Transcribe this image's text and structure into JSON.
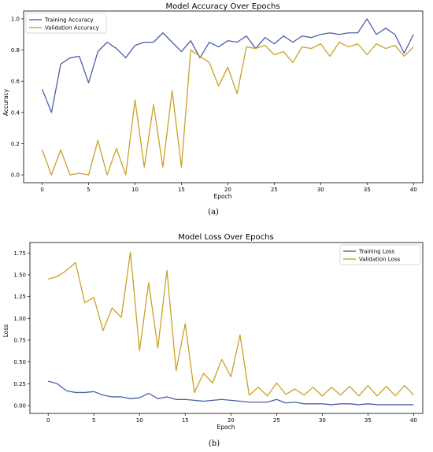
{
  "colors": {
    "training": "#4c5fa8",
    "validation": "#c9a227"
  },
  "chart_data": [
    {
      "type": "line",
      "title": "Model Accuracy Over Epochs",
      "xlabel": "Epoch",
      "ylabel": "Accuracy",
      "caption": "(a)",
      "xlim": [
        -2,
        41
      ],
      "ylim": [
        -0.05,
        1.05
      ],
      "xticks": [
        0,
        5,
        10,
        15,
        20,
        25,
        30,
        35,
        40
      ],
      "yticks": [
        0.0,
        0.2,
        0.4,
        0.6,
        0.8,
        1.0
      ],
      "ytick_labels": [
        "0.0",
        "0.2",
        "0.4",
        "0.6",
        "0.8",
        "1.0"
      ],
      "legend_position": "top-left",
      "x": [
        0,
        1,
        2,
        3,
        4,
        5,
        6,
        7,
        8,
        9,
        10,
        11,
        12,
        13,
        14,
        15,
        16,
        17,
        18,
        19,
        20,
        21,
        22,
        23,
        24,
        25,
        26,
        27,
        28,
        29,
        30,
        31,
        32,
        33,
        34,
        35,
        36,
        37,
        38,
        39,
        40
      ],
      "series": [
        {
          "name": "Training Accuracy",
          "color_key": "training",
          "values": [
            0.55,
            0.4,
            0.71,
            0.75,
            0.76,
            0.59,
            0.79,
            0.85,
            0.81,
            0.75,
            0.83,
            0.85,
            0.85,
            0.91,
            0.85,
            0.79,
            0.86,
            0.75,
            0.85,
            0.82,
            0.86,
            0.85,
            0.89,
            0.81,
            0.88,
            0.84,
            0.89,
            0.85,
            0.89,
            0.88,
            0.9,
            0.91,
            0.9,
            0.91,
            0.91,
            1.0,
            0.9,
            0.94,
            0.9,
            0.78,
            0.9
          ]
        },
        {
          "name": "Validation Accuracy",
          "color_key": "validation",
          "values": [
            0.16,
            0.0,
            0.16,
            0.0,
            0.01,
            0.0,
            0.22,
            0.0,
            0.17,
            0.0,
            0.48,
            0.05,
            0.45,
            0.05,
            0.54,
            0.05,
            0.8,
            0.76,
            0.72,
            0.57,
            0.69,
            0.52,
            0.82,
            0.81,
            0.83,
            0.77,
            0.79,
            0.72,
            0.82,
            0.81,
            0.84,
            0.76,
            0.85,
            0.82,
            0.84,
            0.77,
            0.84,
            0.81,
            0.83,
            0.76,
            0.82
          ]
        }
      ]
    },
    {
      "type": "line",
      "title": "Model Loss Over Epochs",
      "xlabel": "Epoch",
      "ylabel": "Loss",
      "caption": "(b)",
      "xlim": [
        -2,
        41
      ],
      "ylim": [
        -0.09,
        1.87
      ],
      "xticks": [
        0,
        5,
        10,
        15,
        20,
        25,
        30,
        35,
        40
      ],
      "yticks": [
        0.0,
        0.25,
        0.5,
        0.75,
        1.0,
        1.25,
        1.5,
        1.75
      ],
      "ytick_labels": [
        "0.00",
        "0.25",
        "0.50",
        "0.75",
        "1.00",
        "1.25",
        "1.50",
        "1.75"
      ],
      "legend_position": "top-right",
      "x": [
        0,
        1,
        2,
        3,
        4,
        5,
        6,
        7,
        8,
        9,
        10,
        11,
        12,
        13,
        14,
        15,
        16,
        17,
        18,
        19,
        20,
        21,
        22,
        23,
        24,
        25,
        26,
        27,
        28,
        29,
        30,
        31,
        32,
        33,
        34,
        35,
        36,
        37,
        38,
        39,
        40
      ],
      "series": [
        {
          "name": "Training Loss",
          "color_key": "training",
          "values": [
            0.28,
            0.25,
            0.17,
            0.15,
            0.15,
            0.16,
            0.12,
            0.1,
            0.1,
            0.08,
            0.09,
            0.14,
            0.08,
            0.1,
            0.07,
            0.07,
            0.06,
            0.05,
            0.06,
            0.07,
            0.06,
            0.05,
            0.04,
            0.04,
            0.04,
            0.07,
            0.03,
            0.04,
            0.02,
            0.02,
            0.02,
            0.01,
            0.02,
            0.02,
            0.01,
            0.02,
            0.01,
            0.01,
            0.01,
            0.01,
            0.01
          ]
        },
        {
          "name": "Validation Loss",
          "color_key": "validation",
          "values": [
            1.45,
            1.48,
            1.55,
            1.64,
            1.18,
            1.24,
            0.86,
            1.12,
            1.01,
            1.76,
            0.63,
            1.41,
            0.66,
            1.55,
            0.4,
            0.94,
            0.15,
            0.37,
            0.26,
            0.53,
            0.33,
            0.81,
            0.12,
            0.21,
            0.11,
            0.26,
            0.13,
            0.19,
            0.12,
            0.21,
            0.11,
            0.21,
            0.12,
            0.22,
            0.11,
            0.23,
            0.11,
            0.22,
            0.11,
            0.23,
            0.12
          ]
        }
      ]
    }
  ]
}
